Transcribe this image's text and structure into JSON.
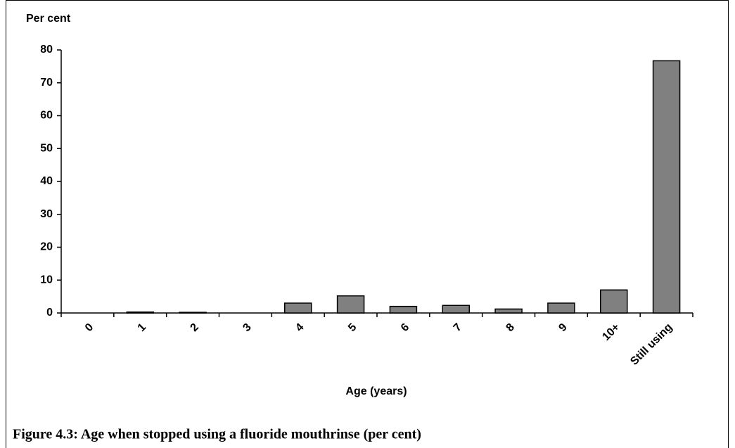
{
  "chart_data": {
    "type": "bar",
    "ylabel": "Per cent",
    "xlabel": "Age (years)",
    "caption": "Figure 4.3: Age when stopped using a fluoride mouthrinse (per cent)",
    "categories": [
      "0",
      "1",
      "2",
      "3",
      "4",
      "5",
      "6",
      "7",
      "8",
      "9",
      "10+",
      "Still using"
    ],
    "values": [
      0,
      0.3,
      0.2,
      0,
      3,
      5.2,
      2,
      2.3,
      1.2,
      3,
      7,
      76.7
    ],
    "color": "#808080",
    "ylim": [
      0,
      80
    ],
    "yticks": [
      0,
      10,
      20,
      30,
      40,
      50,
      60,
      70,
      80
    ],
    "grid": false
  }
}
